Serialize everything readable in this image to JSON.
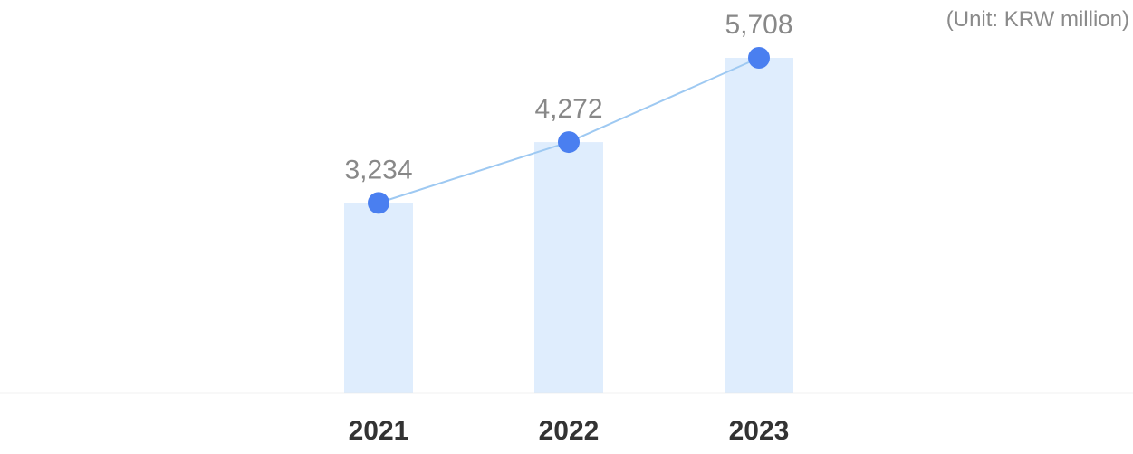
{
  "chart_data": {
    "type": "bar",
    "unit_label": "(Unit: KRW million)",
    "categories": [
      "2021",
      "2022",
      "2023"
    ],
    "values": [
      3234,
      4272,
      5708
    ],
    "value_labels": [
      "3,234",
      "4,272",
      "5,708"
    ],
    "overlay": "line",
    "ylim": [
      0,
      5708
    ],
    "grid": false,
    "colors": {
      "bar": "#dfedfd",
      "line": "#9ec9f2",
      "point": "#4a7ff0",
      "value_text": "#888888",
      "tick_text": "#333333",
      "axis": "#e6e6e6"
    }
  }
}
